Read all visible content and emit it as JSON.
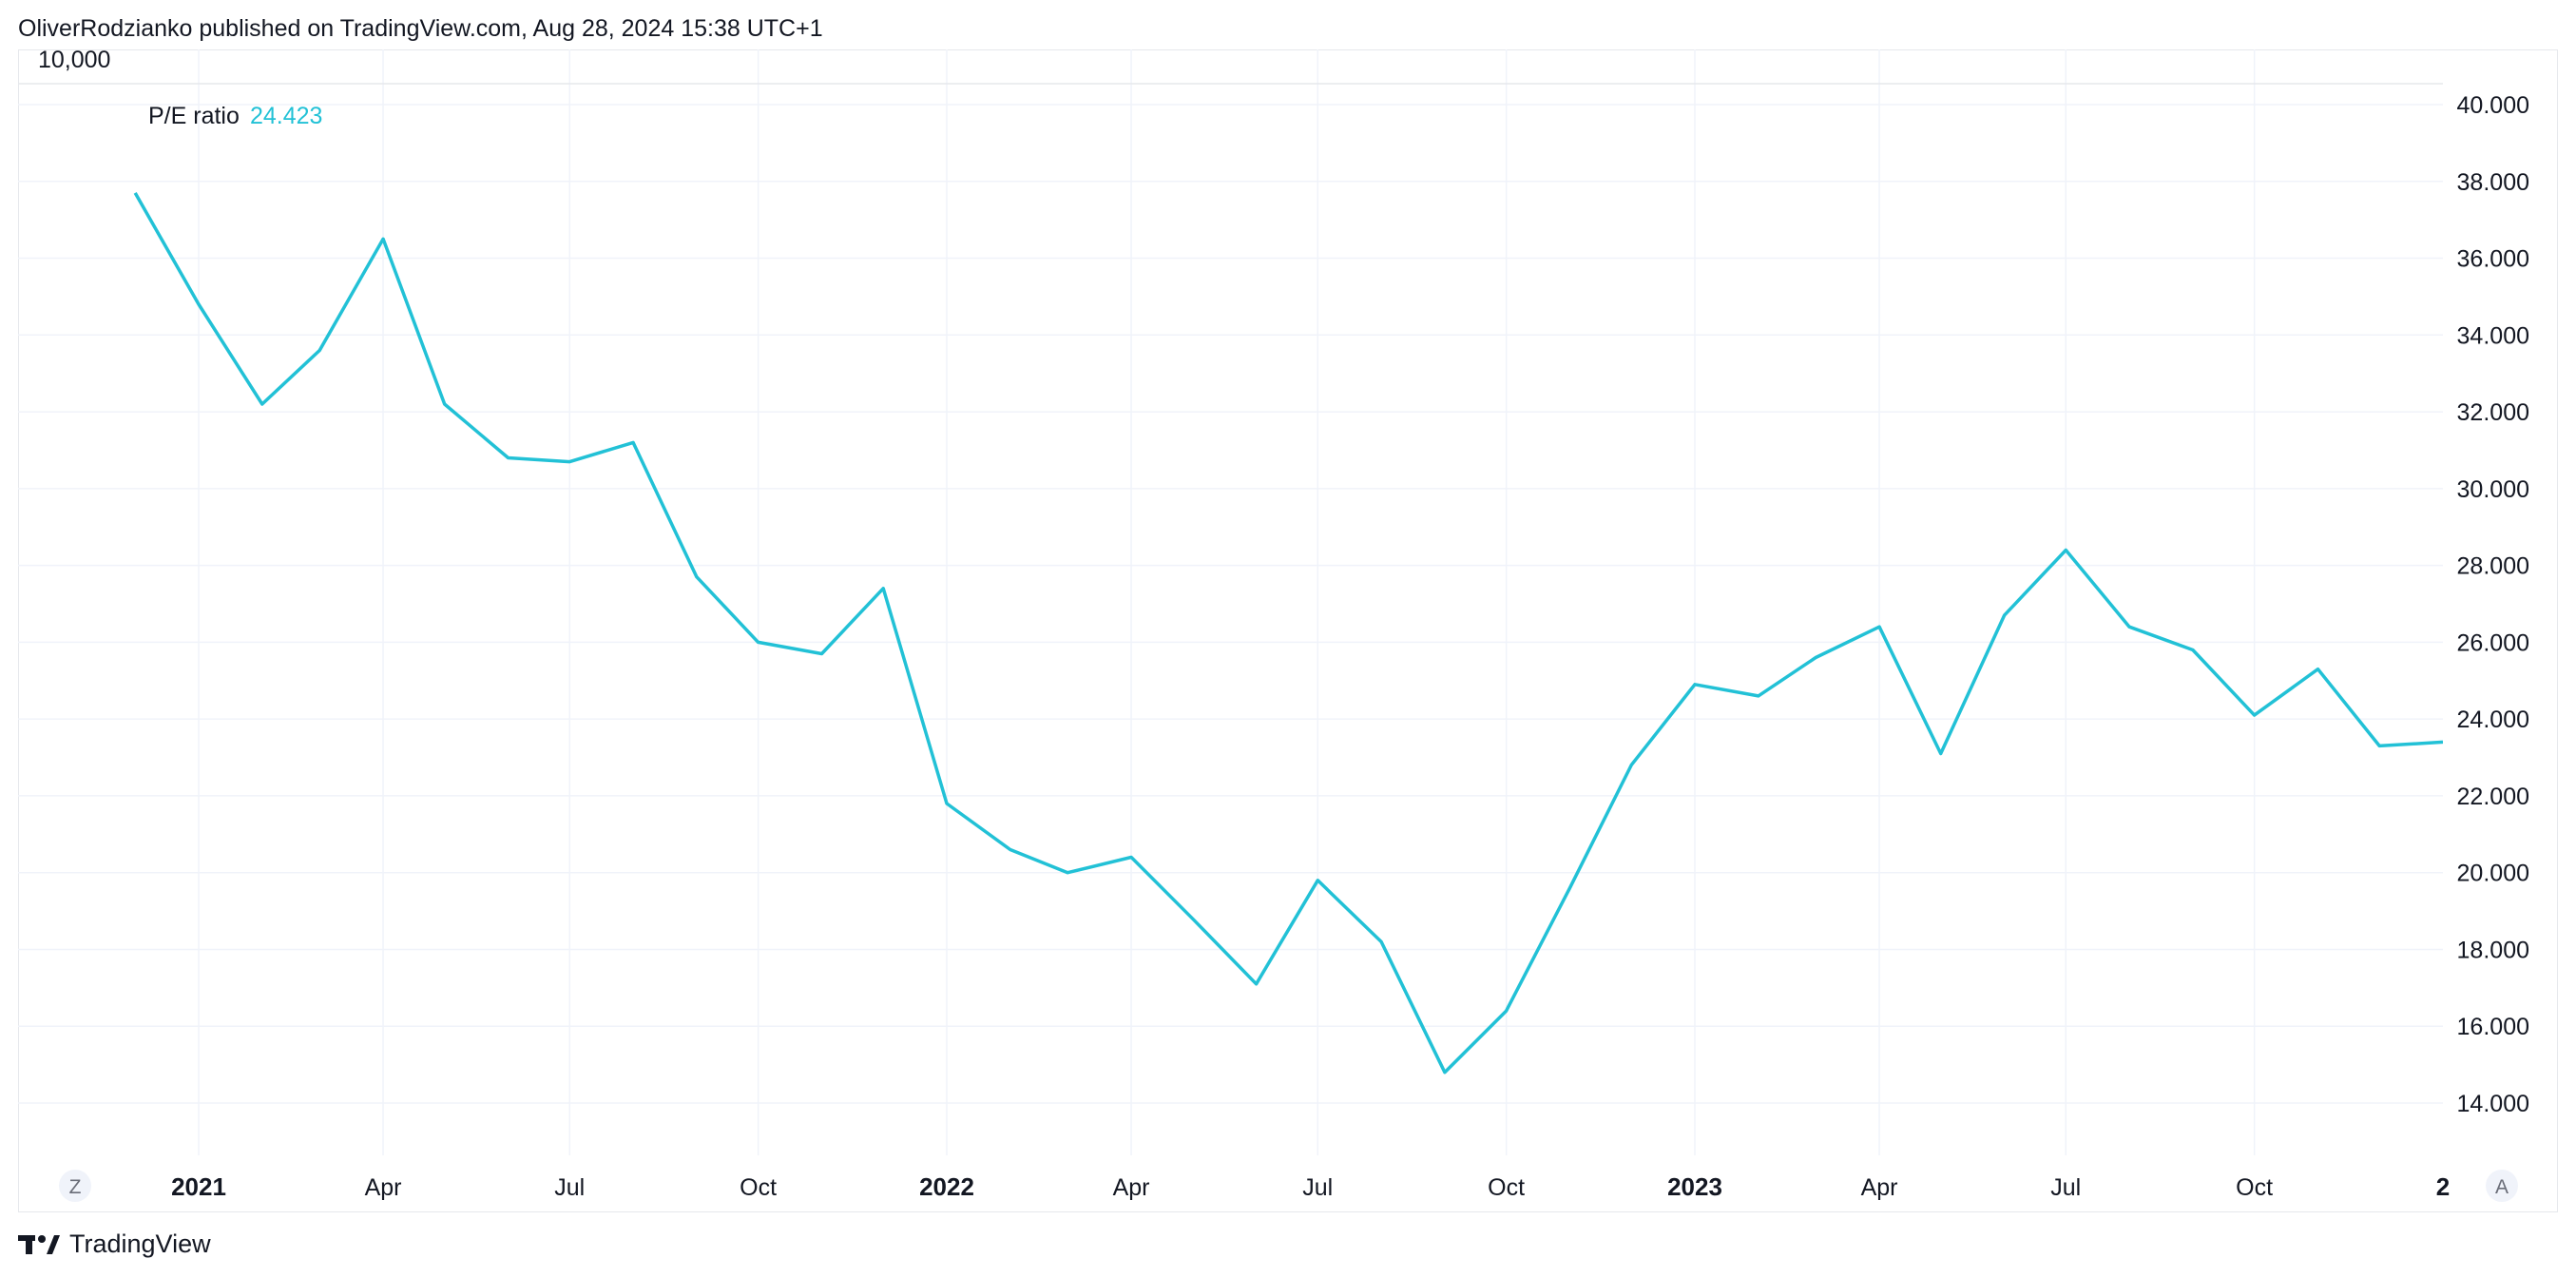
{
  "header": {
    "published_text": "OliverRodzianko published on TradingView.com, Aug 28, 2024 15:38 UTC+1"
  },
  "brand": {
    "logo_text": "17",
    "name": "TradingView"
  },
  "scale_buttons": {
    "left": "Z",
    "right": "A"
  },
  "colors": {
    "series": "#22c1d6",
    "grid": "#f0f3fa",
    "text": "#131722"
  },
  "chart_data": {
    "type": "line",
    "top_left_label": "10,000",
    "legend": {
      "name": "P/E ratio",
      "value": "24.423"
    },
    "ylim": [
      13.0,
      41.0
    ],
    "y_ticks": [
      "14.000",
      "16.000",
      "18.000",
      "20.000",
      "22.000",
      "24.000",
      "26.000",
      "28.000",
      "30.000",
      "32.000",
      "34.000",
      "36.000",
      "38.000",
      "40.000"
    ],
    "x_ticks": [
      {
        "label": "2021",
        "date": "2021-01-01",
        "bold": true
      },
      {
        "label": "Apr",
        "date": "2021-04-01",
        "bold": false
      },
      {
        "label": "Jul",
        "date": "2021-07-01",
        "bold": false
      },
      {
        "label": "Oct",
        "date": "2021-10-01",
        "bold": false
      },
      {
        "label": "2022",
        "date": "2022-01-01",
        "bold": true
      },
      {
        "label": "Apr",
        "date": "2022-04-01",
        "bold": false
      },
      {
        "label": "Jul",
        "date": "2022-07-01",
        "bold": false
      },
      {
        "label": "Oct",
        "date": "2022-10-01",
        "bold": false
      },
      {
        "label": "2023",
        "date": "2023-01-01",
        "bold": true
      },
      {
        "label": "Apr",
        "date": "2023-04-01",
        "bold": false
      },
      {
        "label": "Jul",
        "date": "2023-07-01",
        "bold": false
      },
      {
        "label": "Oct",
        "date": "2023-10-01",
        "bold": false
      },
      {
        "label": "2",
        "date": "2024-01-01",
        "bold": true
      }
    ],
    "series": [
      {
        "x": [
          "2020-12-01",
          "2021-01-01",
          "2021-02-01",
          "2021-03-01",
          "2021-04-01",
          "2021-05-01",
          "2021-06-01",
          "2021-07-01",
          "2021-08-01",
          "2021-09-01",
          "2021-10-01",
          "2021-11-01",
          "2021-12-01",
          "2022-01-01",
          "2022-02-01",
          "2022-03-01",
          "2022-04-01",
          "2022-05-01",
          "2022-06-01",
          "2022-07-01",
          "2022-08-01",
          "2022-09-01",
          "2022-10-01",
          "2022-11-01",
          "2022-12-01",
          "2023-01-01",
          "2023-02-01",
          "2023-03-01",
          "2023-04-01",
          "2023-05-01",
          "2023-06-01",
          "2023-07-01",
          "2023-08-01",
          "2023-09-01",
          "2023-10-01",
          "2023-11-01",
          "2023-12-01",
          "2024-01-01"
        ],
        "values": [
          37.7,
          34.8,
          32.2,
          33.6,
          36.5,
          32.2,
          30.8,
          30.7,
          31.2,
          27.7,
          26.0,
          25.7,
          27.4,
          21.8,
          20.6,
          20.0,
          20.4,
          18.8,
          17.1,
          19.8,
          18.2,
          14.8,
          16.4,
          19.6,
          22.8,
          24.9,
          24.6,
          25.6,
          26.4,
          23.1,
          26.7,
          28.4,
          26.4,
          25.8,
          24.1,
          25.3,
          23.3,
          23.4
        ]
      }
    ],
    "grid": true
  }
}
